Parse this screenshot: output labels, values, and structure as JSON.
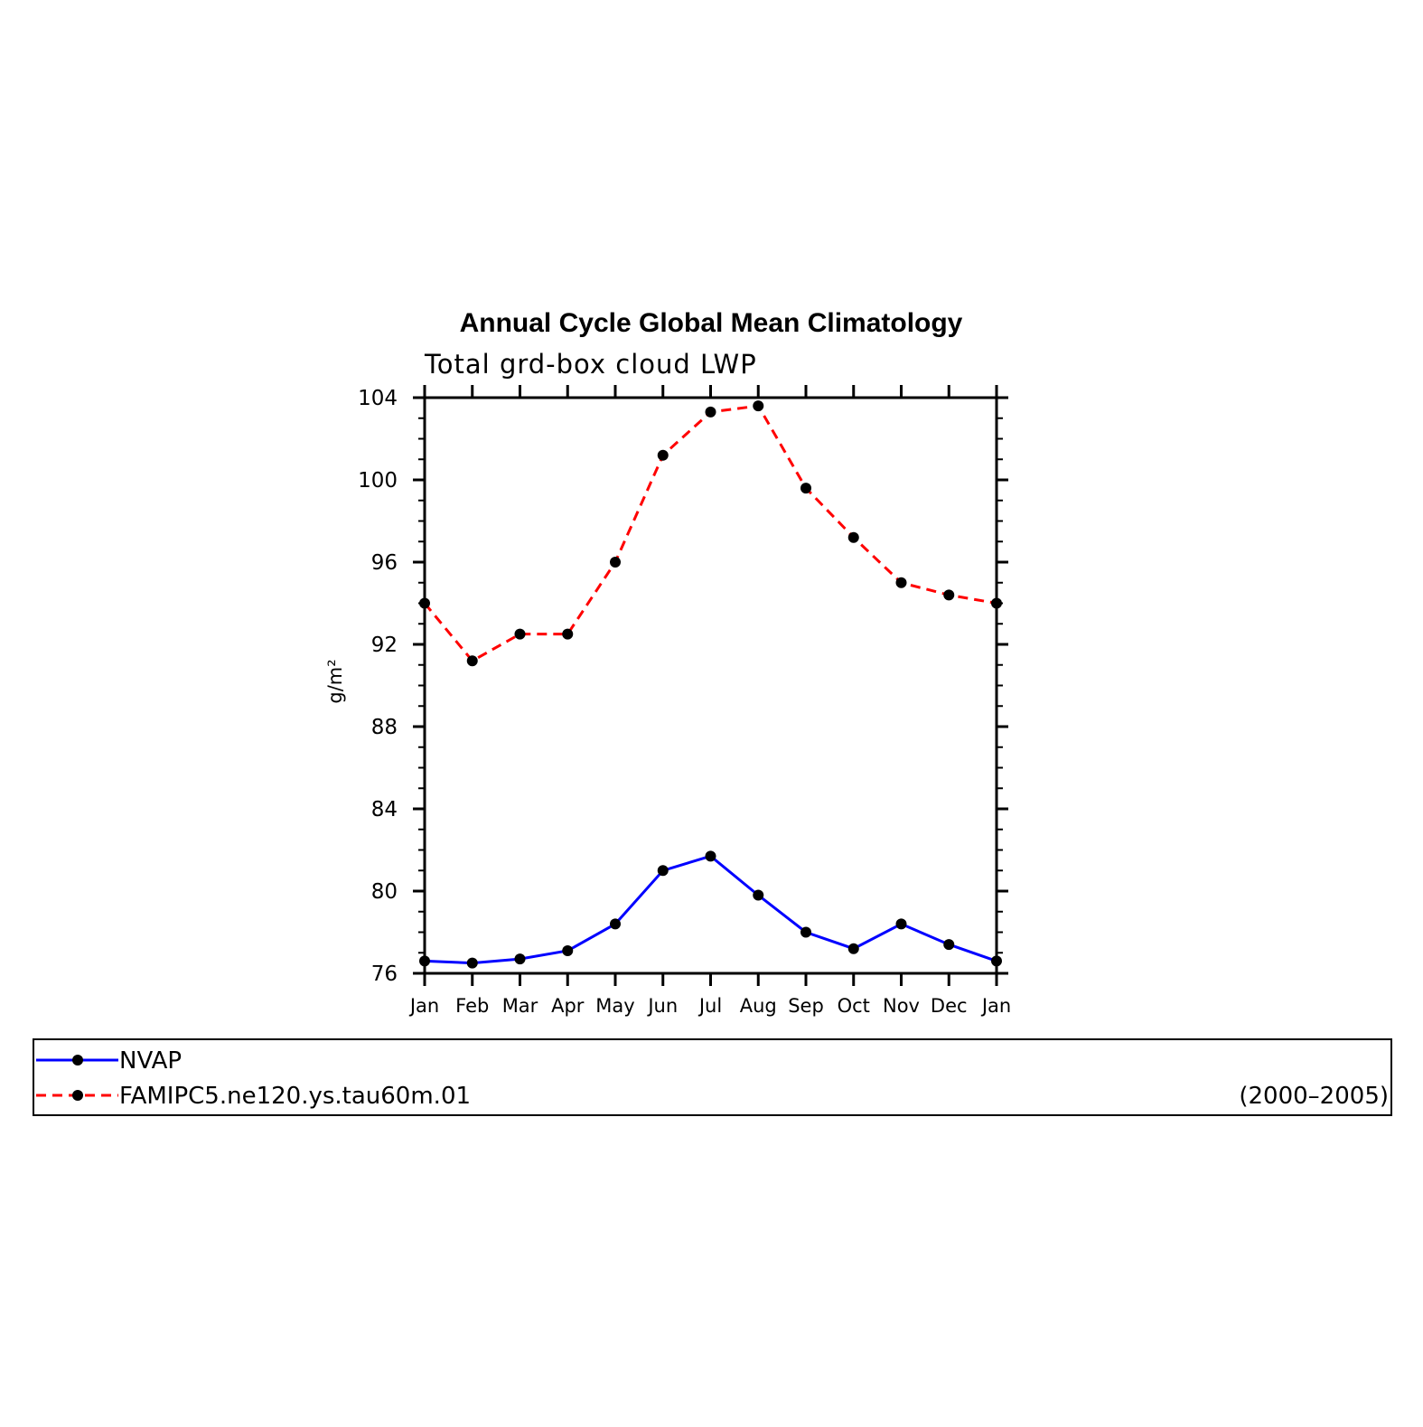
{
  "chart_data": {
    "type": "line",
    "title": "Annual Cycle Global Mean Climatology",
    "subtitle": "Total grd-box cloud LWP",
    "xlabel": "",
    "ylabel": "g/m²",
    "categories": [
      "Jan",
      "Feb",
      "Mar",
      "Apr",
      "May",
      "Jun",
      "Jul",
      "Aug",
      "Sep",
      "Oct",
      "Nov",
      "Dec",
      "Jan"
    ],
    "ylim": [
      76,
      104
    ],
    "yticks": [
      "76",
      "80",
      "84",
      "88",
      "92",
      "96",
      "100",
      "104"
    ],
    "grid": false,
    "legend_position": "bottom",
    "period_label": "(2000–2005)",
    "series": [
      {
        "name": "NVAP",
        "color": "#0000ff",
        "style": "solid",
        "marker": "dot",
        "values": [
          76.6,
          76.5,
          76.7,
          77.1,
          78.4,
          81.0,
          81.7,
          79.8,
          78.0,
          77.2,
          78.4,
          77.4,
          76.6
        ]
      },
      {
        "name": "FAMIPC5.ne120.ys.tau60m.01",
        "color": "#ff0000",
        "style": "dashed",
        "marker": "dot",
        "values": [
          94.0,
          91.2,
          92.5,
          92.5,
          96.0,
          101.2,
          103.3,
          103.6,
          99.6,
          97.2,
          95.0,
          94.4,
          94.0
        ]
      }
    ]
  }
}
